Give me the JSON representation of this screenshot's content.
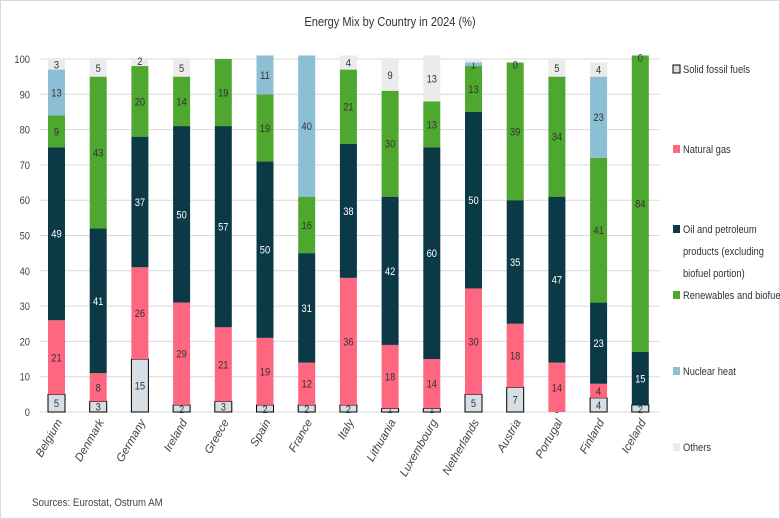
{
  "chart_data": {
    "type": "bar",
    "stacked": true,
    "title": "Energy Mix by Country in 2024 (%)",
    "xlabel": "",
    "ylabel": "",
    "ylim": [
      0,
      100
    ],
    "yticks": [
      0,
      10,
      20,
      30,
      40,
      50,
      60,
      70,
      80,
      90,
      100
    ],
    "grid": true,
    "legend_position": "right",
    "source": "Sources: Eurostat, Ostrum AM",
    "categories": [
      "Belgium",
      "Denmark",
      "Germany",
      "Ireland",
      "Greece",
      "Spain",
      "France",
      "Italy",
      "Lithuania",
      "Luxembourg",
      "Netherlands",
      "Austria",
      "Portugal",
      "Finland",
      "Iceland"
    ],
    "series": [
      {
        "name": "Solid fossil fuels",
        "color": "#d6dfe6",
        "outline": "#000000",
        "label_color": "#333333",
        "values": [
          5,
          3,
          15,
          2,
          3,
          2,
          2,
          2,
          1,
          1,
          5,
          7,
          0,
          4,
          2
        ]
      },
      {
        "name": "Natural gas",
        "color": "#ff6680",
        "label_color": "#333333",
        "values": [
          21,
          8,
          26,
          29,
          21,
          19,
          12,
          36,
          18,
          14,
          30,
          18,
          14,
          4,
          null
        ]
      },
      {
        "name": "Oil and petroleum products (excluding biofuel portion)",
        "color": "#0b3a46",
        "label_color": "#ffffff",
        "values": [
          49,
          41,
          37,
          50,
          57,
          50,
          31,
          38,
          42,
          60,
          50,
          35,
          47,
          23,
          15
        ]
      },
      {
        "name": "Renewables and biofuels",
        "color": "#4ea72e",
        "label_color": "#333333",
        "values": [
          9,
          43,
          20,
          14,
          19,
          19,
          16,
          21,
          30,
          13,
          13,
          39,
          34,
          41,
          84
        ]
      },
      {
        "name": "Nuclear heat",
        "color": "#8cbfd4",
        "label_color": "#333333",
        "values": [
          13,
          null,
          null,
          null,
          null,
          11,
          40,
          null,
          null,
          null,
          1,
          null,
          null,
          23,
          null
        ]
      },
      {
        "name": "Others",
        "color": "#ebebeb",
        "label_color": "#333333",
        "values": [
          3,
          5,
          2,
          5,
          null,
          null,
          null,
          4,
          9,
          13,
          1,
          0,
          5,
          4,
          0
        ]
      }
    ],
    "hidden_labels": {
      "Netherlands": [
        "Others"
      ]
    }
  }
}
